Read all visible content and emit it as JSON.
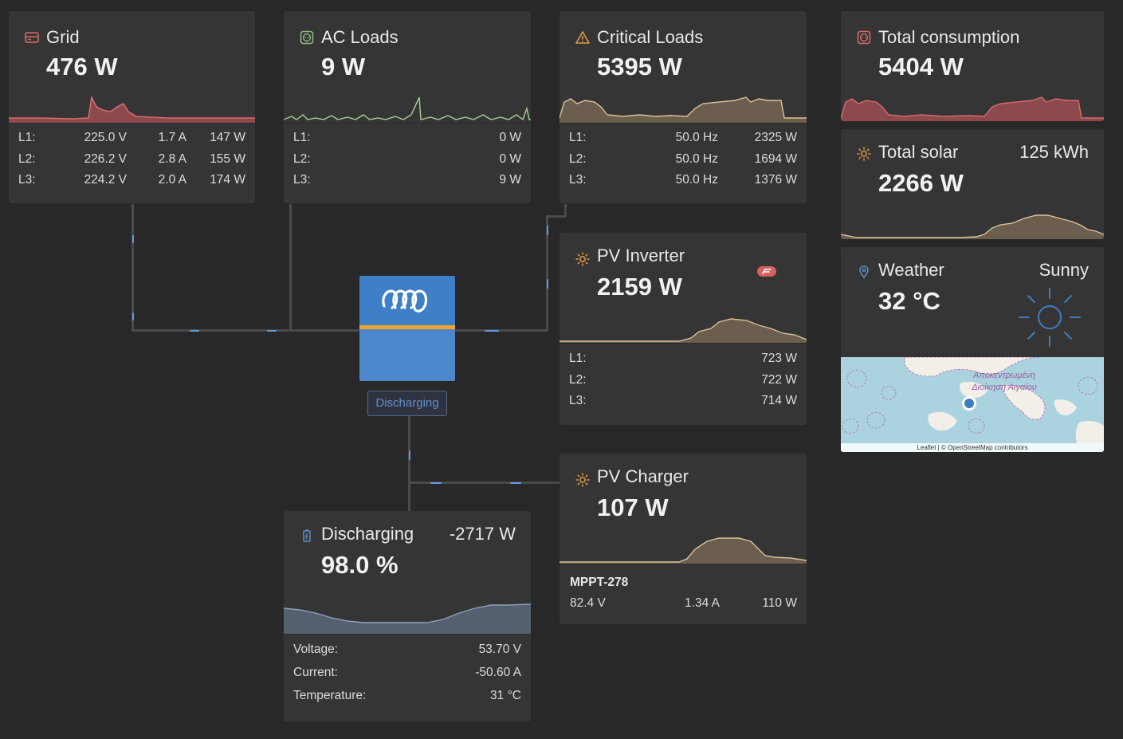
{
  "grid": {
    "title": "Grid",
    "value": "476 W",
    "icon": "grid-meter-icon",
    "rows": [
      {
        "label": "L1:",
        "voltage": "225.0 V",
        "current": "1.7 A",
        "power": "147 W"
      },
      {
        "label": "L2:",
        "voltage": "226.2 V",
        "current": "2.8 A",
        "power": "155 W"
      },
      {
        "label": "L3:",
        "voltage": "224.2 V",
        "current": "2.0 A",
        "power": "174 W"
      }
    ]
  },
  "ac_loads": {
    "title": "AC Loads",
    "value": "9 W",
    "icon": "socket-icon",
    "rows": [
      {
        "label": "L1:",
        "power": "0 W"
      },
      {
        "label": "L2:",
        "power": "0 W"
      },
      {
        "label": "L3:",
        "power": "9 W"
      }
    ]
  },
  "critical_loads": {
    "title": "Critical Loads",
    "value": "5395 W",
    "icon": "warning-icon",
    "rows": [
      {
        "label": "L1:",
        "frequency": "50.0 Hz",
        "power": "2325 W"
      },
      {
        "label": "L2:",
        "frequency": "50.0 Hz",
        "power": "1694 W"
      },
      {
        "label": "L3:",
        "frequency": "50.0 Hz",
        "power": "1376 W"
      }
    ]
  },
  "total_consumption": {
    "title": "Total consumption",
    "value": "5404 W",
    "icon": "consumption-icon"
  },
  "total_solar": {
    "title": "Total solar",
    "value": "2266 W",
    "energy": "125 kWh",
    "icon": "sun-icon"
  },
  "weather": {
    "title": "Weather",
    "value": "32 °C",
    "condition": "Sunny",
    "icon": "location-pin-icon",
    "map_label": "Αποκεντρωμένη Διοίκηση Αιγαίου",
    "attribution": "Leaflet | © OpenStreetMap contributors"
  },
  "pv_inverter": {
    "title": "PV Inverter",
    "value": "2159 W",
    "icon": "sun-icon",
    "badge_icon": "fronius-icon",
    "rows": [
      {
        "label": "L1:",
        "power": "723 W"
      },
      {
        "label": "L2:",
        "power": "722 W"
      },
      {
        "label": "L3:",
        "power": "714 W"
      }
    ]
  },
  "pv_charger": {
    "title": "PV Charger",
    "value": "107 W",
    "icon": "sun-icon",
    "device_name": "MPPT-278",
    "voltage": "82.4 V",
    "current": "1.34 A",
    "power": "110 W"
  },
  "battery": {
    "title": "Discharging",
    "value": "98.0 %",
    "power": "-2717 W",
    "icon": "battery-icon",
    "rows": [
      {
        "label": "Voltage:",
        "value": "53.70 V"
      },
      {
        "label": "Current:",
        "value": "-50.60 A"
      },
      {
        "label": "Temperature:",
        "value": "31 °C"
      }
    ]
  },
  "inverter": {
    "status": "Discharging",
    "logo": "victron-logo-icon"
  },
  "colors": {
    "background": "#282828",
    "card": "#353535",
    "grid_accent": "#c95a60",
    "ac_loads_accent": "#8fb77e",
    "pv_accent": "#8a7a60",
    "battery_accent": "#5c6d80",
    "flow": "#5d9be0",
    "inverter_blue": "#4c87cc",
    "inverter_stripe": "#f0a531"
  }
}
